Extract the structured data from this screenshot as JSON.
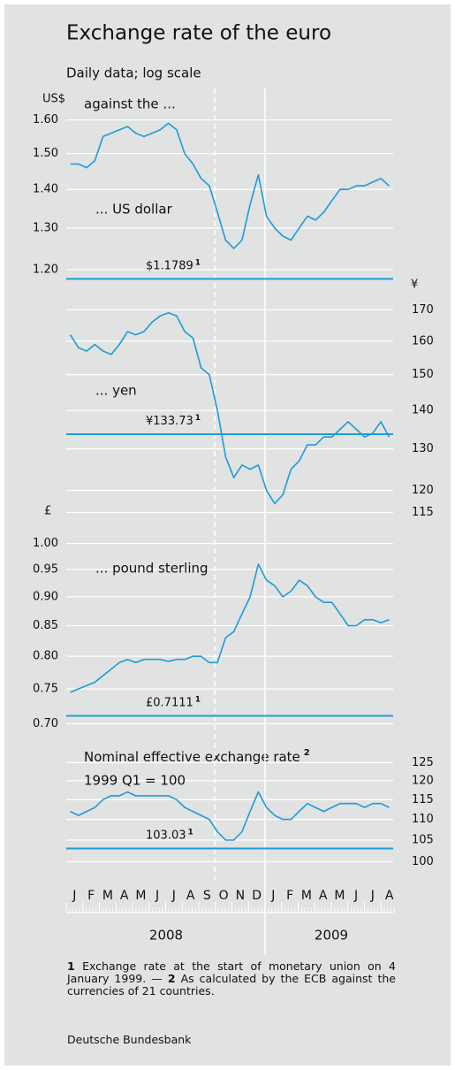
{
  "title": "Exchange rate of the euro",
  "subtitle": "Daily data; log scale",
  "months": [
    "J",
    "F",
    "M",
    "A",
    "M",
    "J",
    "J",
    "A",
    "S",
    "O",
    "N",
    "D",
    "J",
    "F",
    "M",
    "A",
    "M",
    "J",
    "J",
    "A"
  ],
  "years": [
    "2008",
    "2009"
  ],
  "footnotes": [
    {
      "marker": "1",
      "text": "Exchange rate at the start of monetary union on 4 January 1999. —"
    },
    {
      "marker": "2",
      "text": "As calculated by the ECB against the currencies of 21 countries."
    }
  ],
  "source": "Deutsche Bundesbank",
  "chart_data": [
    {
      "type": "line",
      "log_scale": true,
      "unit": "US$",
      "annotation": "against the ...",
      "ylim": [
        1.15,
        1.7
      ],
      "yticks": [
        {
          "value": 1.2,
          "label": "1.20"
        },
        {
          "value": 1.3,
          "label": "1.30"
        },
        {
          "value": 1.4,
          "label": "1.40"
        },
        {
          "value": 1.5,
          "label": "1.50"
        },
        {
          "value": 1.6,
          "label": "1.60"
        }
      ],
      "reference": {
        "value": 1.1789,
        "label": "$1.1789",
        "note": "1"
      },
      "series": [
        {
          "name": "... US dollar",
          "color": "#1e9cd7",
          "values": [
            1.47,
            1.47,
            1.46,
            1.48,
            1.55,
            1.56,
            1.57,
            1.58,
            1.56,
            1.55,
            1.56,
            1.57,
            1.59,
            1.57,
            1.5,
            1.47,
            1.43,
            1.41,
            1.34,
            1.27,
            1.25,
            1.27,
            1.36,
            1.44,
            1.33,
            1.3,
            1.28,
            1.27,
            1.3,
            1.33,
            1.32,
            1.34,
            1.37,
            1.4,
            1.4,
            1.41,
            1.41,
            1.42,
            1.43,
            1.41
          ]
        }
      ]
    },
    {
      "type": "line",
      "log_scale": true,
      "unit": "¥",
      "ylim": [
        112,
        176
      ],
      "yticks": [
        115,
        120,
        130,
        140,
        150,
        160,
        170
      ],
      "reference": {
        "value": 133.73,
        "label": "¥133.73",
        "note": "1"
      },
      "series": [
        {
          "name": "... yen",
          "color": "#1e9cd7",
          "values": [
            162,
            158,
            157,
            159,
            157,
            156,
            159,
            163,
            162,
            163,
            166,
            168,
            169,
            168,
            163,
            161,
            152,
            150,
            140,
            128,
            123,
            126,
            125,
            126,
            120,
            117,
            119,
            125,
            127,
            131,
            131,
            133,
            133,
            135,
            137,
            135,
            133,
            134,
            137,
            133
          ]
        }
      ]
    },
    {
      "type": "line",
      "log_scale": true,
      "unit": "£",
      "ylim": [
        0.686,
        1.035
      ],
      "yticks": [
        {
          "value": 0.7,
          "label": "0.70"
        },
        0.75,
        {
          "value": 0.8,
          "label": "0.80"
        },
        0.85,
        {
          "value": 0.9,
          "label": "0.90"
        },
        0.95,
        {
          "value": 1.0,
          "label": "1.00"
        }
      ],
      "reference": {
        "value": 0.7111,
        "label": "£0.7111",
        "note": "1"
      },
      "series": [
        {
          "name": "... pound sterling",
          "color": "#1e9cd7",
          "values": [
            0.745,
            0.75,
            0.755,
            0.76,
            0.77,
            0.78,
            0.79,
            0.795,
            0.79,
            0.795,
            0.795,
            0.795,
            0.792,
            0.795,
            0.795,
            0.8,
            0.8,
            0.79,
            0.79,
            0.83,
            0.84,
            0.87,
            0.9,
            0.96,
            0.93,
            0.92,
            0.9,
            0.91,
            0.93,
            0.92,
            0.9,
            0.89,
            0.89,
            0.87,
            0.85,
            0.85,
            0.86,
            0.86,
            0.855,
            0.86
          ]
        }
      ]
    },
    {
      "type": "line",
      "log_scale": true,
      "title": "Nominal effective exchange rate",
      "title_note": "2",
      "subtitle": "1999 Q1 = 100",
      "ylim": [
        96,
        132
      ],
      "yticks": [
        100,
        105,
        110,
        115,
        120,
        125
      ],
      "reference": {
        "value": 103.03,
        "label": "103.03",
        "note": "1"
      },
      "series": [
        {
          "color": "#1e9cd7",
          "values": [
            112,
            111,
            112,
            113,
            115,
            116,
            116,
            117,
            116,
            116,
            116,
            116,
            116,
            115,
            113,
            112,
            111,
            110,
            107,
            105,
            105,
            107,
            112,
            117,
            113,
            111,
            110,
            110,
            112,
            114,
            113,
            112,
            113,
            114,
            114,
            114,
            113,
            114,
            114,
            113
          ]
        }
      ]
    }
  ]
}
